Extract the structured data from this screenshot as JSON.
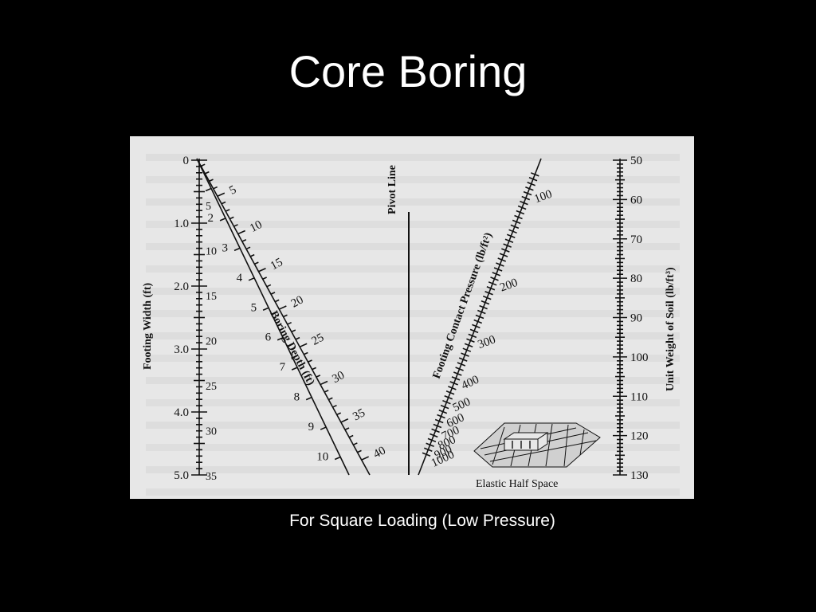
{
  "slide": {
    "title": "Core Boring",
    "caption": "For Square Loading (Low Pressure)"
  },
  "nomograph": {
    "footing_width": {
      "label": "Footing Width (ft)",
      "ticks": [
        "0",
        "1.0",
        "2.0",
        "3.0",
        "4.0",
        "5.0"
      ],
      "inner_ticks": [
        "5",
        "10",
        "15",
        "20",
        "25",
        "30",
        "35"
      ]
    },
    "boring_depth_square": {
      "ticks": [
        "5",
        "10",
        "15",
        "20",
        "25",
        "30",
        "35",
        "40"
      ]
    },
    "boring_depth_ratio": {
      "label": "Boring Depth (ft)",
      "ticks": [
        "2",
        "3",
        "4",
        "5",
        "6",
        "7",
        "8",
        "9",
        "10"
      ]
    },
    "pivot_line": {
      "label": "Pivot Line"
    },
    "contact_pressure": {
      "label": "Footing Contact Pressure (lb/ft²)",
      "ticks": [
        "100",
        "200",
        "300",
        "400",
        "500",
        "600",
        "700",
        "800",
        "900",
        "1000"
      ]
    },
    "unit_weight": {
      "label": "Unit Weight of Soil (lb/ft³)",
      "ticks": [
        "50",
        "60",
        "70",
        "80",
        "90",
        "100",
        "110",
        "120",
        "130"
      ]
    },
    "inset": {
      "label": "Elastic Half Space"
    }
  }
}
